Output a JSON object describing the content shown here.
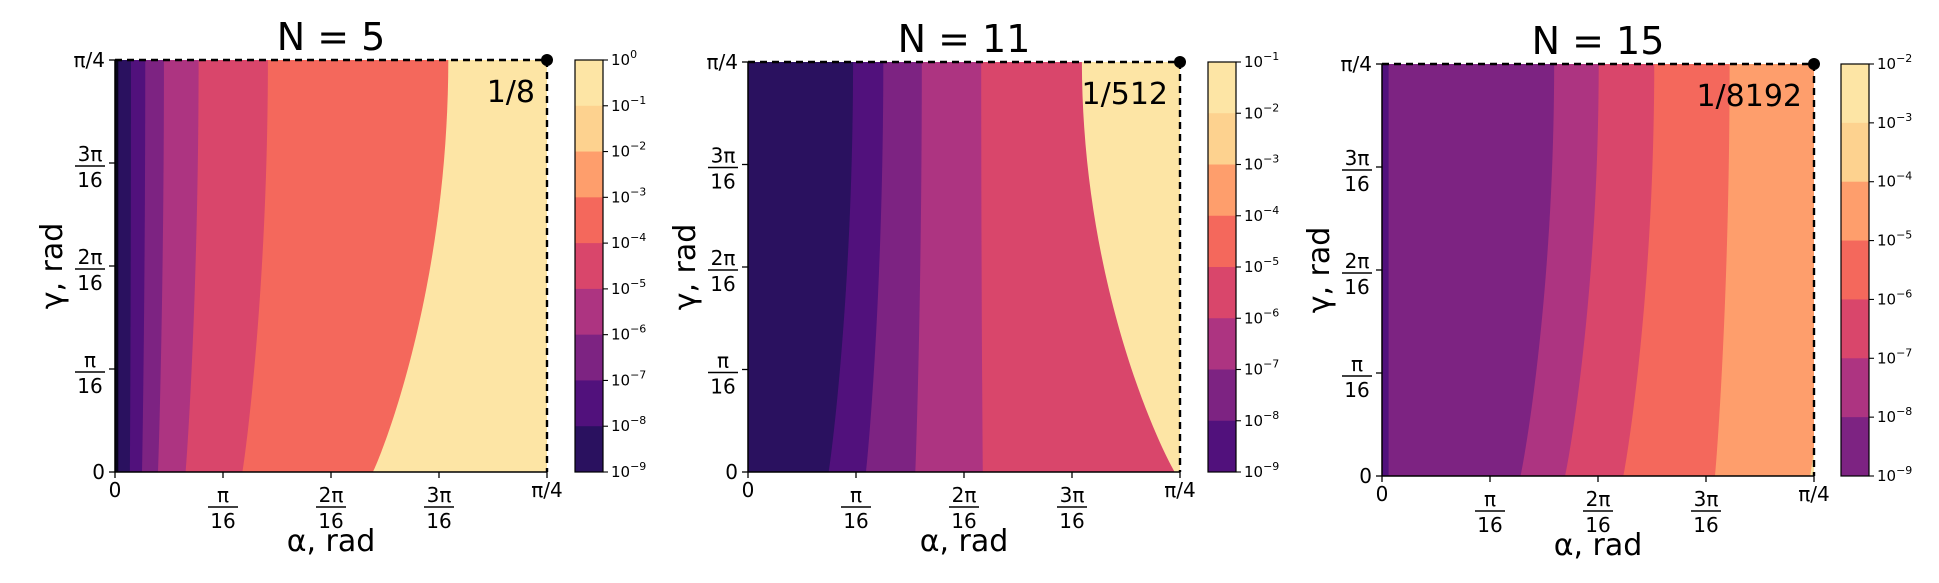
{
  "colors": {
    "levels": [
      "#07051a",
      "#2a115f",
      "#51117c",
      "#7d2382",
      "#ad3481",
      "#d9466b",
      "#f4685c",
      "#fe9e6c",
      "#fdd28f",
      "#fde5a5"
    ],
    "corner_marker": "#000000",
    "dashed_frame": "#000000"
  },
  "chart_data": [
    {
      "type": "heatmap",
      "title": "N = 5",
      "xlabel": "α, rad",
      "ylabel": "γ, rad",
      "x_tick_labels": [
        "0",
        "π/16",
        "2π/16",
        "3π/16",
        "π/4"
      ],
      "y_tick_labels": [
        "0",
        "π/16",
        "2π/16",
        "3π/16",
        "π/4"
      ],
      "xlim": [
        0,
        0.7854
      ],
      "ylim": [
        0,
        0.7854
      ],
      "annotation": "1/8",
      "colorbar_scale": "log",
      "colorbar_exponents": [
        0,
        -1,
        -2,
        -3,
        -4,
        -5,
        -6,
        -7,
        -8,
        -9
      ],
      "color_offset": 0,
      "boundaries_at_gamma_0": [
        0.006,
        0.027,
        0.049,
        0.078,
        0.128,
        0.231,
        0.467
      ],
      "boundaries_at_gamma_max": [
        0.006,
        0.029,
        0.055,
        0.089,
        0.152,
        0.278,
        0.606
      ],
      "corner_point": [
        0.7854,
        0.7854
      ]
    },
    {
      "type": "heatmap",
      "title": "N = 11",
      "xlabel": "α, rad",
      "ylabel": "γ, rad",
      "x_tick_labels": [
        "0",
        "π/16",
        "2π/16",
        "3π/16",
        "π/4"
      ],
      "y_tick_labels": [
        "0",
        "π/16",
        "2π/16",
        "3π/16",
        "π/4"
      ],
      "xlim": [
        0,
        0.7854
      ],
      "ylim": [
        0,
        0.7854
      ],
      "annotation": "1/512",
      "colorbar_scale": "log",
      "colorbar_exponents": [
        -1,
        -2,
        -3,
        -4,
        -5,
        -6,
        -7,
        -8,
        -9
      ],
      "color_offset": 1,
      "boundaries_at_gamma_0": [
        0.146,
        0.214,
        0.304,
        0.427,
        0.778
      ],
      "boundaries_at_gamma_max": [
        0.191,
        0.246,
        0.316,
        0.424,
        0.607
      ],
      "corner_point": [
        0.7854,
        0.7854
      ]
    },
    {
      "type": "heatmap",
      "title": "N = 15",
      "xlabel": "α, rad",
      "ylabel": "γ, rad",
      "x_tick_labels": [
        "0",
        "π/16",
        "2π/16",
        "3π/16",
        "π/4"
      ],
      "y_tick_labels": [
        "0",
        "π/16",
        "2π/16",
        "3π/16",
        "π/4"
      ],
      "xlim": [
        0,
        0.7854
      ],
      "ylim": [
        0,
        0.7854
      ],
      "annotation": "1/8192",
      "colorbar_scale": "log",
      "colorbar_exponents": [
        -2,
        -3,
        -4,
        -5,
        -6,
        -7,
        -8,
        -9
      ],
      "color_offset": 2,
      "boundaries_at_gamma_0": [
        0.012,
        0.251,
        0.332,
        0.438,
        0.605,
        0.778
      ],
      "boundaries_at_gamma_max": [
        0.012,
        0.313,
        0.394,
        0.495,
        0.632
      ],
      "corner_point": [
        0.7854,
        0.7854
      ]
    }
  ]
}
